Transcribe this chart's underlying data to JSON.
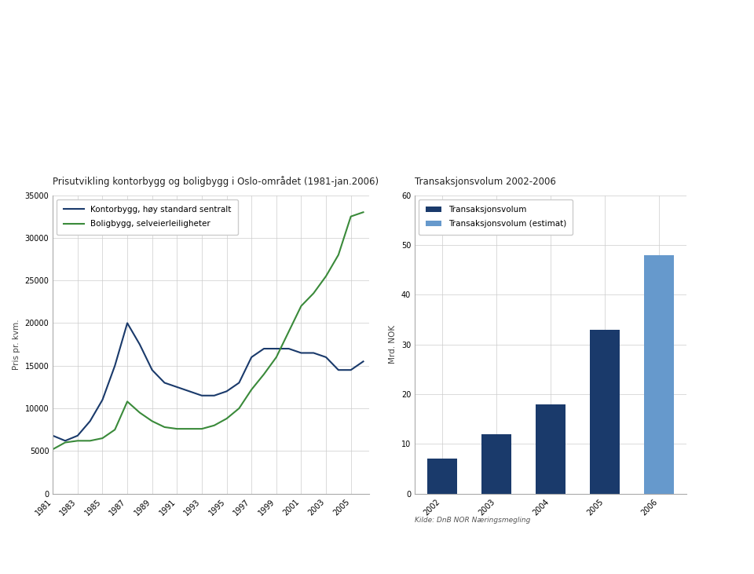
{
  "line_title": "Prisutvikling kontorbygg og boligbygg i Oslo-området (1981-jan.2006)",
  "bar_title": "Transaksjonsvolum 2002-2006",
  "line_ylabel": "Pris pr. kvm.",
  "bar_ylabel": "Mrd. NOK",
  "source_label": "Kilde: DnB NOR Næringsmegling",
  "line_years": [
    1981,
    1982,
    1983,
    1984,
    1985,
    1986,
    1987,
    1988,
    1989,
    1990,
    1991,
    1992,
    1993,
    1994,
    1995,
    1996,
    1997,
    1998,
    1999,
    2000,
    2001,
    2002,
    2003,
    2004,
    2005,
    2006
  ],
  "kontorbygg": [
    6800,
    6200,
    6800,
    8500,
    11000,
    15000,
    20000,
    17500,
    14500,
    13000,
    12500,
    12000,
    11500,
    11500,
    12000,
    13000,
    16000,
    17000,
    17000,
    17000,
    16500,
    16500,
    16000,
    14500,
    14500,
    15500
  ],
  "boligbygg": [
    5200,
    6000,
    6200,
    6200,
    6500,
    7500,
    10800,
    9500,
    8500,
    7800,
    7600,
    7600,
    7600,
    8000,
    8800,
    10000,
    12200,
    14000,
    16000,
    19000,
    22000,
    23500,
    25500,
    28000,
    32500,
    33000
  ],
  "line_ylim": [
    0,
    35000
  ],
  "line_yticks": [
    0,
    5000,
    10000,
    15000,
    20000,
    25000,
    30000,
    35000
  ],
  "line_xticks": [
    1981,
    1983,
    1985,
    1987,
    1989,
    1991,
    1993,
    1995,
    1997,
    1999,
    2001,
    2003,
    2005
  ],
  "kontorbygg_color": "#1a3a6b",
  "boligbygg_color": "#3a8a3a",
  "bar_years": [
    "2002",
    "2003",
    "2004",
    "2005",
    "2006"
  ],
  "bar_values": [
    7,
    12,
    18,
    33,
    48
  ],
  "bar_colors": [
    "#1a3a6b",
    "#1a3a6b",
    "#1a3a6b",
    "#1a3a6b",
    "#6699cc"
  ],
  "bar_ylim": [
    0,
    60
  ],
  "bar_yticks": [
    0,
    10,
    20,
    30,
    40,
    50,
    60
  ],
  "background_color": "#ffffff",
  "fig_background": "#ffffff",
  "grid_color": "#cccccc",
  "title_fontsize": 8.5,
  "axis_fontsize": 7.5,
  "tick_fontsize": 7,
  "legend_fontsize": 7.5,
  "dark_blue": "#1a3a6b",
  "light_blue": "#6699cc"
}
